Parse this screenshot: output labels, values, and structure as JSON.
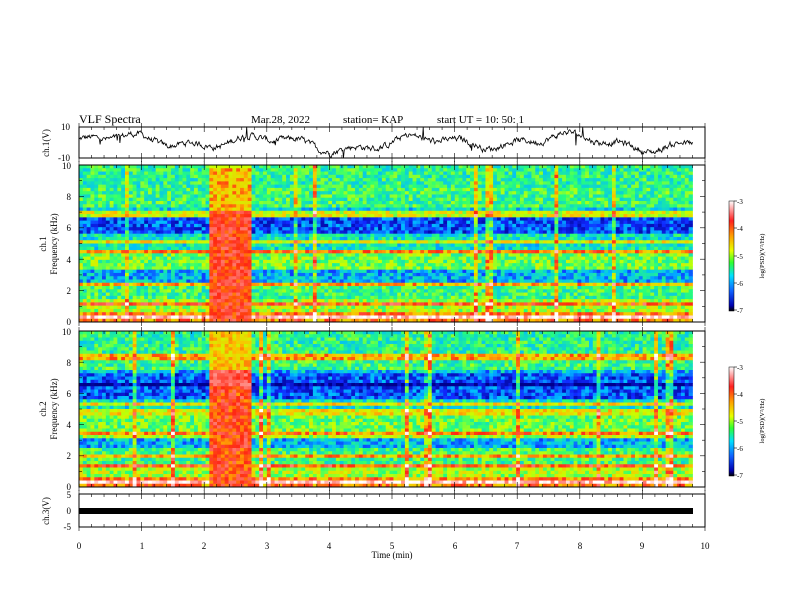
{
  "header": {
    "title": "VLF Spectra",
    "date": "Mar.28, 2022",
    "station": "station= KAP",
    "start": "start  UT =   10: 50: 1"
  },
  "panels": {
    "ch1_wave": {
      "ylabel": "ch.1(V)",
      "ytick_top": "10",
      "ytick_bottom": "-10"
    },
    "ch1_spec": {
      "ylabel_line1": "ch.1",
      "ylabel_line2": "Frequency (kHz)",
      "yticks": [
        "0",
        "2",
        "4",
        "6",
        "8",
        "10"
      ]
    },
    "ch2_spec": {
      "ylabel_line1": "ch.2",
      "ylabel_line2": "Frequency (kHz)",
      "yticks": [
        "0",
        "2",
        "4",
        "6",
        "8",
        "10"
      ]
    },
    "ch3_wave": {
      "ylabel": "ch.3(V)",
      "ytick_top": "5",
      "ytick_mid": "0",
      "ytick_bottom": "-5"
    }
  },
  "xaxis": {
    "label": "Time (min)",
    "ticks": [
      "0",
      "1",
      "2",
      "3",
      "4",
      "5",
      "6",
      "7",
      "8",
      "9",
      "10"
    ]
  },
  "colorbar": {
    "label": "log(PSD)(V²/Hz)",
    "ticks": [
      "-3",
      "-4",
      "-5",
      "-6",
      "-7"
    ]
  },
  "chart_data": [
    {
      "type": "line",
      "panel": "ch.1(V)",
      "ylabel": "ch.1(V)",
      "xlim": [
        0,
        10
      ],
      "ylim": [
        -10,
        10
      ],
      "x_extent_min": [
        0,
        9.8
      ],
      "description_values": {
        "typical_range_V": [
          -6,
          8
        ]
      }
    },
    {
      "type": "heatmap",
      "panel": "ch.1",
      "xlabel": "Time (min)",
      "ylabel": "Frequency (kHz)",
      "xlim": [
        0,
        10
      ],
      "ylim": [
        0,
        10
      ],
      "data_extent_min": [
        0,
        9.8
      ],
      "colorbar": {
        "label": "log(PSD)(V²/Hz)",
        "range": [
          -7,
          -3
        ]
      },
      "burst_interval_min": [
        2.1,
        2.75
      ]
    },
    {
      "type": "heatmap",
      "panel": "ch.2",
      "xlabel": "Time (min)",
      "ylabel": "Frequency (kHz)",
      "xlim": [
        0,
        10
      ],
      "ylim": [
        0,
        10
      ],
      "data_extent_min": [
        0,
        9.8
      ],
      "colorbar": {
        "label": "log(PSD)(V²/Hz)",
        "range": [
          -7,
          -3
        ]
      },
      "burst_interval_min": [
        2.1,
        2.75
      ]
    },
    {
      "type": "line",
      "panel": "ch.3(V)",
      "ylabel": "ch.3(V)",
      "xlim": [
        0,
        10
      ],
      "ylim": [
        -5,
        5
      ],
      "x_extent_min": [
        0,
        9.8
      ],
      "description_values": {
        "level_V": -0.2
      }
    }
  ]
}
